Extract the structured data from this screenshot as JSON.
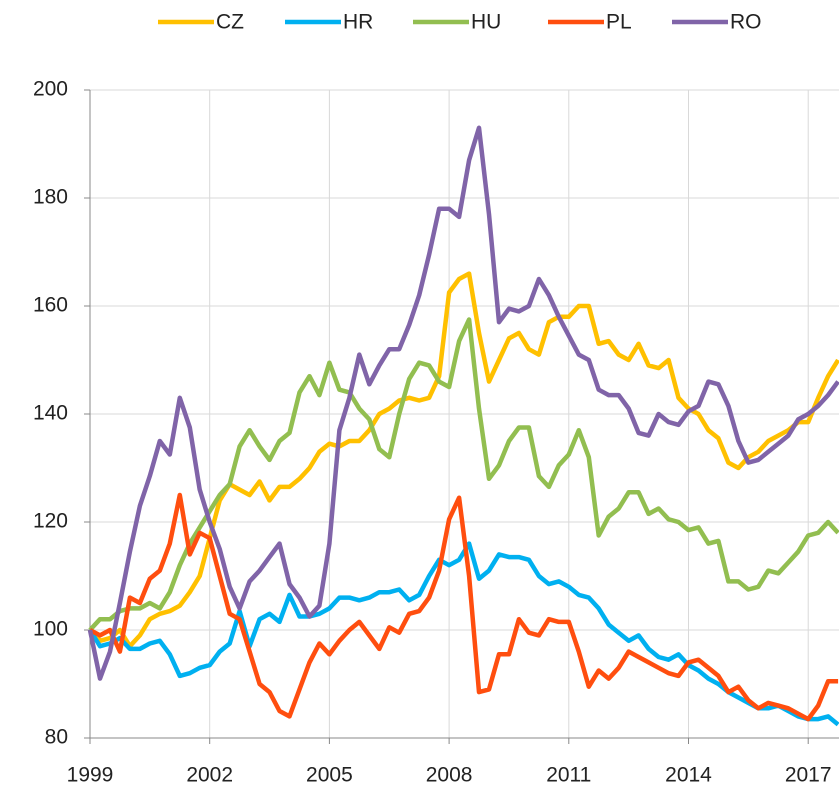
{
  "chart_data": {
    "type": "line",
    "x": [
      1999,
      1999.25,
      1999.5,
      1999.75,
      2000,
      2000.25,
      2000.5,
      2000.75,
      2001,
      2001.25,
      2001.5,
      2001.75,
      2002,
      2002.25,
      2002.5,
      2002.75,
      2003,
      2003.25,
      2003.5,
      2003.75,
      2004,
      2004.25,
      2004.5,
      2004.75,
      2005,
      2005.25,
      2005.5,
      2005.75,
      2006,
      2006.25,
      2006.5,
      2006.75,
      2007,
      2007.25,
      2007.5,
      2007.75,
      2008,
      2008.25,
      2008.5,
      2008.75,
      2009,
      2009.25,
      2009.5,
      2009.75,
      2010,
      2010.25,
      2010.5,
      2010.75,
      2011,
      2011.25,
      2011.5,
      2011.75,
      2012,
      2012.25,
      2012.5,
      2012.75,
      2013,
      2013.25,
      2013.5,
      2013.75,
      2014,
      2014.25,
      2014.5,
      2014.75,
      2015,
      2015.25,
      2015.5,
      2015.75,
      2016,
      2016.25,
      2016.5,
      2016.75,
      2017,
      2017.25,
      2017.5,
      2017.75
    ],
    "series": [
      {
        "name": "CZ",
        "color": "#FFC000",
        "values": [
          100,
          98,
          98.5,
          100,
          97,
          99,
          102,
          103,
          103.5,
          104.5,
          107,
          110,
          117,
          124,
          127,
          126,
          125,
          127.5,
          124,
          126.5,
          126.5,
          128,
          130,
          133,
          134.5,
          134,
          135,
          135,
          137,
          140,
          141,
          142.5,
          143,
          142.5,
          143,
          147,
          162.5,
          165,
          166,
          155,
          146,
          150,
          154,
          155,
          152,
          151,
          157,
          158,
          158,
          160,
          160,
          153,
          153.5,
          151,
          150,
          153,
          149,
          148.5,
          150,
          143,
          141,
          140,
          137,
          135.5,
          131,
          130,
          132,
          133,
          135,
          136,
          137,
          138.5,
          138.5,
          143,
          147,
          150
        ]
      },
      {
        "name": "HR",
        "color": "#00B0F0",
        "values": [
          100,
          97,
          97.5,
          98.5,
          96.5,
          96.5,
          97.5,
          98,
          95.5,
          91.5,
          92,
          93,
          93.5,
          96,
          97.5,
          103.5,
          97,
          102,
          103,
          101.5,
          106.5,
          102.5,
          102.5,
          103,
          104,
          106,
          106,
          105.5,
          106,
          107,
          107,
          107.5,
          105.5,
          106.5,
          110,
          113,
          112,
          113,
          116,
          109.5,
          111,
          114,
          113.5,
          113.5,
          113,
          110,
          108.5,
          109,
          108,
          106.5,
          106,
          104,
          101,
          99.5,
          98,
          99,
          96.5,
          95,
          94.5,
          95.5,
          93.5,
          92.5,
          91,
          90,
          88.5,
          87.5,
          86.5,
          85.5,
          85.5,
          86,
          85,
          84,
          83.5,
          83.5,
          84,
          82.5
        ]
      },
      {
        "name": "HU",
        "color": "#92BE50",
        "values": [
          100,
          102,
          102,
          103.5,
          104,
          104,
          105,
          104,
          107,
          112,
          116,
          119,
          122,
          125,
          127,
          134,
          137,
          134,
          131.5,
          135,
          136.5,
          144,
          147,
          143.5,
          149.5,
          144.5,
          144,
          141,
          139,
          133.5,
          132,
          140,
          146.5,
          149.5,
          149,
          146,
          145,
          153.5,
          157.5,
          141,
          128,
          130.5,
          135,
          137.5,
          137.5,
          128.5,
          126.5,
          130.5,
          132.5,
          137,
          132,
          117.5,
          121,
          122.5,
          125.5,
          125.5,
          121.5,
          122.5,
          120.5,
          120,
          118.5,
          119,
          116,
          116.5,
          109,
          109,
          107.5,
          108,
          111,
          110.5,
          112.5,
          114.5,
          117.5,
          118,
          120,
          118
        ]
      },
      {
        "name": "PL",
        "color": "#FF4E0F",
        "values": [
          100,
          99,
          100,
          96,
          106,
          105,
          109.5,
          111,
          116,
          125,
          114,
          118,
          117,
          110,
          103,
          102,
          96,
          90,
          88.5,
          85,
          84,
          89,
          94,
          97.5,
          95.5,
          98,
          100,
          101.5,
          99,
          96.5,
          100.5,
          99.5,
          103,
          103.5,
          106,
          111,
          120.5,
          124.5,
          110,
          88.5,
          89,
          95.5,
          95.5,
          102,
          99.5,
          99,
          102,
          101.5,
          101.5,
          96,
          89.5,
          92.5,
          91,
          93,
          96,
          95,
          94,
          93,
          92,
          91.5,
          94,
          94.5,
          93,
          91.5,
          88.5,
          89.5,
          87,
          85.5,
          86.5,
          86,
          85.5,
          84.5,
          83.5,
          86,
          90.5,
          90.5
        ]
      },
      {
        "name": "RO",
        "color": "#8064A8",
        "values": [
          100,
          91,
          96,
          105,
          114.5,
          123,
          128.5,
          135,
          132.5,
          143,
          137.5,
          126,
          120,
          115,
          108,
          104,
          109,
          111,
          113.5,
          116,
          108.5,
          106,
          102.5,
          104.5,
          116,
          137,
          143,
          151,
          145.5,
          149,
          152,
          152,
          156.5,
          162,
          169.5,
          178,
          178,
          176.5,
          187,
          193,
          177,
          157,
          159.5,
          159,
          160,
          165,
          162,
          158,
          154.5,
          151,
          150,
          144.5,
          143.5,
          143.5,
          141,
          136.5,
          136,
          140,
          138.5,
          138,
          140.5,
          141.5,
          146,
          145.5,
          141.5,
          135,
          131,
          131.5,
          133,
          134.5,
          136,
          139,
          140,
          141.5,
          143.5,
          146
        ]
      }
    ],
    "xlim": [
      1999,
      2017.8
    ],
    "xticks": [
      1999,
      2002,
      2005,
      2008,
      2011,
      2014,
      2017
    ],
    "ylim": [
      80,
      200
    ],
    "yticks": [
      80,
      100,
      120,
      140,
      160,
      180,
      200
    ],
    "grid": true,
    "legend": "top"
  }
}
